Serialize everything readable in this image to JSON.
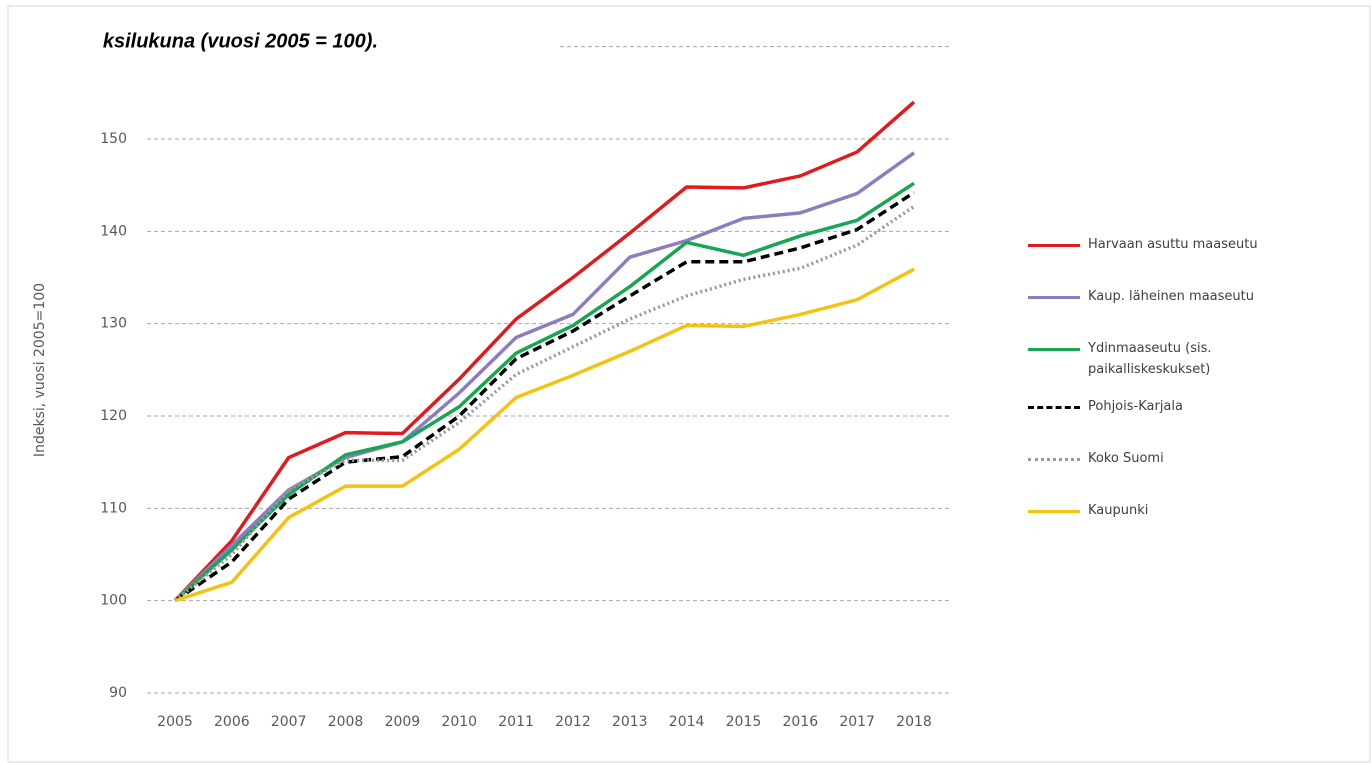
{
  "chart_data": {
    "type": "line",
    "title": "ksilukuna (vuosi 2005 = 100).",
    "y_label": "Indeksi, vuosi 2005=100",
    "categories": [
      "2005",
      "2006",
      "2007",
      "2008",
      "2009",
      "2010",
      "2011",
      "2012",
      "2013",
      "2014",
      "2015",
      "2016",
      "2017",
      "2018"
    ],
    "series": [
      {
        "name": "Harvaan asuttu maaseutu",
        "color": "#e31a1c",
        "style": "solid",
        "values": [
          100,
          106.5,
          115.5,
          118.2,
          118.1,
          124,
          130.5,
          135,
          139.8,
          144.8,
          144.7,
          146,
          148.6,
          154
        ]
      },
      {
        "name": "Kaup. läheinen maaseutu",
        "color": "#8e7cc3",
        "style": "solid",
        "values": [
          100,
          106,
          112,
          115.5,
          117.2,
          122.5,
          128.5,
          131,
          137.2,
          139,
          141.4,
          142,
          144.1,
          148.5
        ]
      },
      {
        "name": "Ydinmaaseutu (sis. paikalliskeskukset)",
        "color": "#17a651",
        "style": "solid",
        "values": [
          100,
          105.5,
          111.5,
          115.8,
          117.2,
          121,
          126.8,
          129.8,
          134,
          138.8,
          137.4,
          139.5,
          141.2,
          145.2
        ]
      },
      {
        "name": "Pohjois-Karjala",
        "color": "#000000",
        "style": "dashed",
        "values": [
          100,
          104.2,
          111,
          115,
          115.6,
          120,
          126.2,
          129.2,
          133,
          136.7,
          136.7,
          138.2,
          140.2,
          144.2
        ]
      },
      {
        "name": "Koko Suomi",
        "color": "#999999",
        "style": "dotted",
        "values": [
          100,
          105,
          112,
          115.2,
          115.2,
          119.3,
          124.5,
          127.5,
          130.5,
          133,
          134.8,
          136,
          138.5,
          142.7
        ]
      },
      {
        "name": "Kaupunki",
        "color": "#f5c211",
        "style": "solid",
        "values": [
          100,
          102,
          109,
          112.4,
          112.4,
          116.4,
          122,
          124.4,
          127,
          129.8,
          129.7,
          131,
          132.6,
          135.9
        ]
      }
    ],
    "ylim": [
      90,
      160
    ],
    "yticks": [
      90,
      100,
      110,
      120,
      130,
      140,
      150
    ],
    "grid": true,
    "legend": "right"
  }
}
